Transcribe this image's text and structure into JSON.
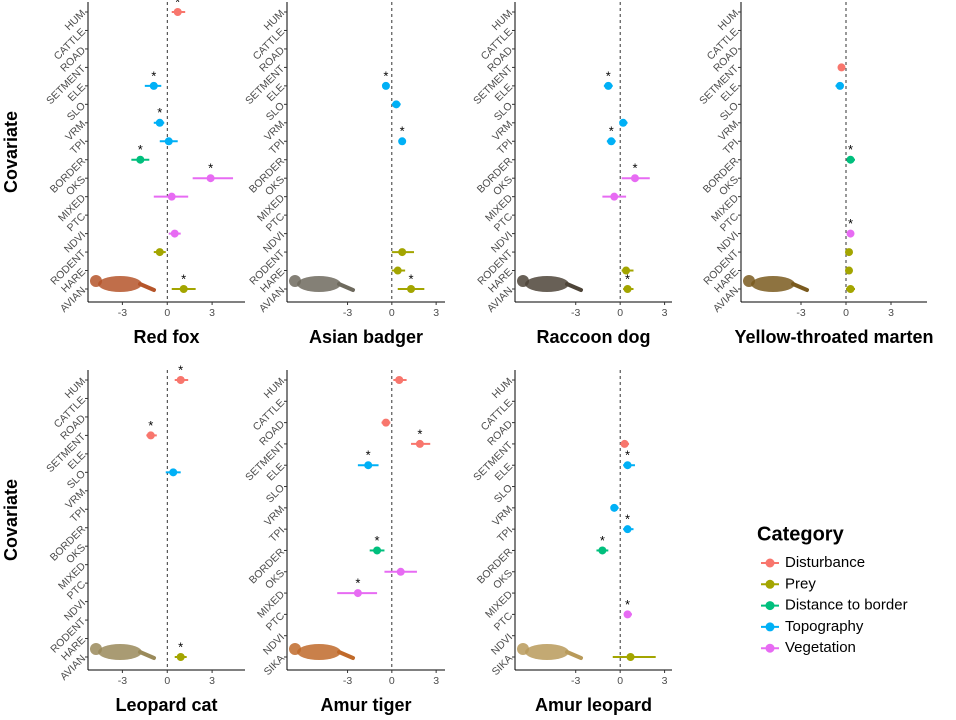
{
  "legend": {
    "title": "Category",
    "series": [
      {
        "name": "Disturbance",
        "color": "#F8766D"
      },
      {
        "name": "Prey",
        "color": "#A3A500"
      },
      {
        "name": "Distance to border",
        "color": "#00BF7D"
      },
      {
        "name": "Topography",
        "color": "#00B0F6"
      },
      {
        "name": "Vegetation",
        "color": "#E76BF3"
      }
    ]
  },
  "chart_data": [
    {
      "type": "forest",
      "title": "Red fox",
      "ylabel": "Covariate",
      "categories": [
        "HUM",
        "CATTLE",
        "ROAD",
        "SETMENT",
        "ELE",
        "SLO",
        "VRM",
        "TPI",
        "BORDER",
        "OKS",
        "MIXED",
        "PTC",
        "NDVI",
        "RODENT",
        "HARE",
        "AVIAN"
      ],
      "values": [
        0.7,
        null,
        null,
        null,
        -0.9,
        null,
        -0.5,
        0.1,
        -1.8,
        2.9,
        0.3,
        null,
        0.5,
        -0.5,
        null,
        1.1
      ],
      "lower": [
        0.3,
        null,
        null,
        null,
        -1.5,
        null,
        -0.9,
        -0.5,
        -2.4,
        1.7,
        -0.9,
        null,
        0.1,
        -0.9,
        null,
        0.3
      ],
      "upper": [
        1.2,
        null,
        null,
        null,
        -0.4,
        null,
        -0.2,
        0.7,
        -1.2,
        4.4,
        1.4,
        null,
        0.9,
        -0.1,
        null,
        1.9
      ],
      "groups": [
        "Disturbance",
        null,
        null,
        null,
        "Topography",
        null,
        "Topography",
        "Topography",
        "Distance to border",
        "Vegetation",
        "Vegetation",
        null,
        "Vegetation",
        "Prey",
        null,
        "Prey"
      ],
      "stars": [
        "*",
        null,
        null,
        null,
        "*",
        null,
        "*",
        null,
        "*",
        "*",
        null,
        null,
        null,
        null,
        null,
        "*"
      ],
      "xlim": [
        -5.3,
        5.2
      ],
      "xticks": [
        -3,
        0,
        3
      ]
    },
    {
      "type": "forest",
      "title": "Asian badger",
      "categories": [
        "HUM",
        "CATTLE",
        "ROAD",
        "SETMENT",
        "ELE",
        "SLO",
        "VRM",
        "TPI",
        "BORDER",
        "OKS",
        "MIXED",
        "PTC",
        "NDVI",
        "RODENT",
        "HARE",
        "AVIAN"
      ],
      "values": [
        null,
        null,
        null,
        null,
        -0.4,
        0.3,
        null,
        0.7,
        null,
        null,
        null,
        null,
        null,
        0.7,
        0.4,
        1.3
      ],
      "lower": [
        null,
        null,
        null,
        null,
        -0.6,
        0.0,
        null,
        0.5,
        null,
        null,
        null,
        null,
        null,
        0.0,
        0.0,
        0.4
      ],
      "upper": [
        null,
        null,
        null,
        null,
        -0.2,
        0.6,
        null,
        0.9,
        null,
        null,
        null,
        null,
        null,
        1.5,
        0.9,
        2.2
      ],
      "groups": [
        null,
        null,
        null,
        null,
        "Topography",
        "Topography",
        null,
        "Topography",
        null,
        null,
        null,
        null,
        null,
        "Prey",
        "Prey",
        "Prey"
      ],
      "stars": [
        null,
        null,
        null,
        null,
        "*",
        null,
        null,
        "*",
        null,
        null,
        null,
        null,
        null,
        null,
        null,
        "*"
      ],
      "xlim": [
        -7.1,
        3.6
      ],
      "xticks": [
        -3,
        0,
        3
      ]
    },
    {
      "type": "forest",
      "title": "Raccoon dog",
      "categories": [
        "HUM",
        "CATTLE",
        "ROAD",
        "SETMENT",
        "ELE",
        "SLO",
        "VRM",
        "TPI",
        "BORDER",
        "OKS",
        "MIXED",
        "PTC",
        "NDVI",
        "RODENT",
        "HARE",
        "AVIAN"
      ],
      "values": [
        null,
        null,
        null,
        null,
        -0.8,
        null,
        0.2,
        -0.6,
        null,
        1.0,
        -0.4,
        null,
        null,
        null,
        0.4,
        0.5
      ],
      "lower": [
        null,
        null,
        null,
        null,
        -1.1,
        null,
        0.0,
        -0.9,
        null,
        0.1,
        -1.2,
        null,
        null,
        null,
        0.1,
        0.2
      ],
      "upper": [
        null,
        null,
        null,
        null,
        -0.5,
        null,
        0.5,
        -0.3,
        null,
        2.0,
        0.4,
        null,
        null,
        null,
        0.9,
        0.9
      ],
      "groups": [
        null,
        null,
        null,
        null,
        "Topography",
        null,
        "Topography",
        "Topography",
        null,
        "Vegetation",
        "Vegetation",
        null,
        null,
        null,
        "Prey",
        "Prey"
      ],
      "stars": [
        null,
        null,
        null,
        null,
        "*",
        null,
        null,
        "*",
        null,
        "*",
        null,
        null,
        null,
        null,
        null,
        "*"
      ],
      "xlim": [
        -7.1,
        3.5
      ],
      "xticks": [
        -3,
        0,
        3
      ]
    },
    {
      "type": "forest",
      "title": "Yellow-throated marten",
      "categories": [
        "HUM",
        "CATTLE",
        "ROAD",
        "SETMENT",
        "ELE",
        "SLO",
        "VRM",
        "TPI",
        "BORDER",
        "OKS",
        "MIXED",
        "PTC",
        "NDVI",
        "RODENT",
        "HARE",
        "AVIAN"
      ],
      "values": [
        null,
        null,
        null,
        -0.3,
        -0.4,
        null,
        null,
        null,
        0.3,
        null,
        null,
        null,
        0.3,
        0.2,
        0.2,
        0.3
      ],
      "lower": [
        null,
        null,
        null,
        -0.5,
        -0.7,
        null,
        null,
        null,
        0.1,
        null,
        null,
        null,
        0.1,
        0.0,
        0.0,
        0.0
      ],
      "upper": [
        null,
        null,
        null,
        -0.1,
        -0.2,
        null,
        null,
        null,
        0.6,
        null,
        null,
        null,
        0.5,
        0.4,
        0.4,
        0.6
      ],
      "groups": [
        null,
        null,
        null,
        "Disturbance",
        "Topography",
        null,
        null,
        null,
        "Distance to border",
        null,
        null,
        null,
        "Vegetation",
        "Prey",
        "Prey",
        "Prey"
      ],
      "stars": [
        null,
        null,
        null,
        null,
        null,
        null,
        null,
        null,
        "*",
        null,
        null,
        null,
        "*",
        null,
        null,
        null
      ],
      "xlim": [
        -7.0,
        5.4
      ],
      "xticks": [
        -3,
        0,
        3
      ]
    },
    {
      "type": "forest",
      "title": "Leopard cat",
      "ylabel": "Covariate",
      "categories": [
        "HUM",
        "CATTLE",
        "ROAD",
        "SETMENT",
        "ELE",
        "SLO",
        "VRM",
        "TPI",
        "BORDER",
        "OKS",
        "MIXED",
        "PTC",
        "NDVI",
        "RODENT",
        "HARE",
        "AVIAN"
      ],
      "values": [
        0.9,
        null,
        null,
        -1.1,
        null,
        0.4,
        null,
        null,
        null,
        null,
        null,
        null,
        null,
        null,
        null,
        0.9
      ],
      "lower": [
        0.5,
        null,
        null,
        -1.4,
        null,
        -0.1,
        null,
        null,
        null,
        null,
        null,
        null,
        null,
        null,
        null,
        0.5
      ],
      "upper": [
        1.4,
        null,
        null,
        -0.7,
        null,
        0.9,
        null,
        null,
        null,
        null,
        null,
        null,
        null,
        null,
        null,
        1.3
      ],
      "groups": [
        "Disturbance",
        null,
        null,
        "Disturbance",
        null,
        "Topography",
        null,
        null,
        null,
        null,
        null,
        null,
        null,
        null,
        null,
        "Prey"
      ],
      "stars": [
        "*",
        null,
        null,
        "*",
        null,
        null,
        null,
        null,
        null,
        null,
        null,
        null,
        null,
        null,
        null,
        "*"
      ],
      "xlim": [
        -5.3,
        5.2
      ],
      "xticks": [
        -3,
        0,
        3
      ]
    },
    {
      "type": "forest",
      "title": "Amur tiger",
      "categories": [
        "HUM",
        "CATTLE",
        "ROAD",
        "SETMENT",
        "ELE",
        "SLO",
        "VRM",
        "TPI",
        "BORDER",
        "OKS",
        "MIXED",
        "PTC",
        "NDVI",
        "SIKA"
      ],
      "values": [
        0.5,
        null,
        -0.4,
        1.9,
        -1.6,
        null,
        null,
        null,
        -1.0,
        0.6,
        -2.3,
        null,
        null,
        null
      ],
      "lower": [
        0.1,
        null,
        -0.7,
        1.3,
        -2.3,
        null,
        null,
        null,
        -1.5,
        -0.5,
        -3.7,
        null,
        null,
        null
      ],
      "upper": [
        1.0,
        null,
        -0.1,
        2.6,
        -0.9,
        null,
        null,
        null,
        -0.5,
        1.7,
        -1.0,
        null,
        null,
        null
      ],
      "groups": [
        "Disturbance",
        null,
        "Disturbance",
        "Disturbance",
        "Topography",
        null,
        null,
        null,
        "Distance to border",
        "Vegetation",
        "Vegetation",
        null,
        null,
        null
      ],
      "stars": [
        null,
        null,
        null,
        "*",
        "*",
        null,
        null,
        null,
        "*",
        null,
        "*",
        null,
        null,
        null
      ],
      "xlim": [
        -7.1,
        3.6
      ],
      "xticks": [
        -3,
        0,
        3
      ]
    },
    {
      "type": "forest",
      "title": "Amur leopard",
      "categories": [
        "HUM",
        "CATTLE",
        "ROAD",
        "SETMENT",
        "ELE",
        "SLO",
        "VRM",
        "TPI",
        "BORDER",
        "OKS",
        "MIXED",
        "PTC",
        "NDVI",
        "SIKA"
      ],
      "values": [
        null,
        null,
        null,
        0.3,
        0.5,
        null,
        -0.4,
        0.5,
        -1.2,
        null,
        null,
        0.5,
        null,
        0.7
      ],
      "lower": [
        null,
        null,
        null,
        0.0,
        0.2,
        null,
        -0.6,
        0.2,
        -1.6,
        null,
        null,
        0.3,
        null,
        -0.5
      ],
      "upper": [
        null,
        null,
        null,
        0.6,
        1.0,
        null,
        -0.1,
        0.9,
        -0.8,
        null,
        null,
        0.8,
        null,
        2.4
      ],
      "groups": [
        null,
        null,
        null,
        "Disturbance",
        "Topography",
        null,
        "Topography",
        "Topography",
        "Distance to border",
        null,
        null,
        "Vegetation",
        null,
        "Prey"
      ],
      "stars": [
        null,
        null,
        null,
        null,
        "*",
        null,
        null,
        "*",
        "*",
        null,
        null,
        "*",
        null,
        null
      ],
      "xlim": [
        -7.1,
        3.5
      ],
      "xticks": [
        -3,
        0,
        3
      ]
    }
  ]
}
